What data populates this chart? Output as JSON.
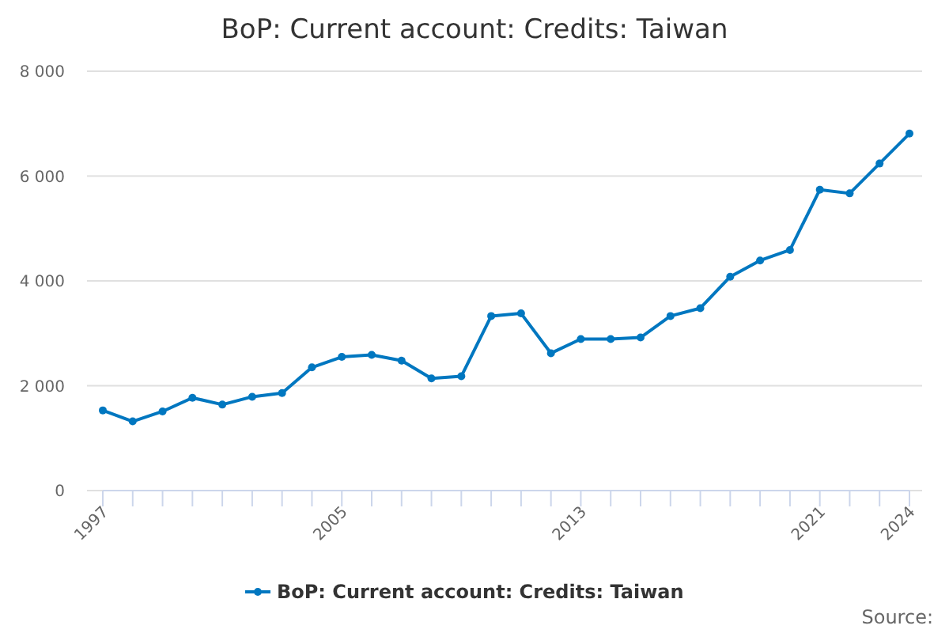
{
  "chart_data": {
    "type": "line",
    "title": "BoP: Current account: Credits: Taiwan",
    "x": [
      1997,
      1998,
      1999,
      2000,
      2001,
      2002,
      2003,
      2004,
      2005,
      2006,
      2007,
      2008,
      2009,
      2010,
      2011,
      2012,
      2013,
      2014,
      2015,
      2016,
      2017,
      2018,
      2019,
      2020,
      2021,
      2022,
      2023,
      2024
    ],
    "series": [
      {
        "name": "BoP: Current account: Credits: Taiwan",
        "color": "#0077c0",
        "values": [
          1530,
          1320,
          1510,
          1770,
          1640,
          1790,
          1860,
          2350,
          2550,
          2590,
          2480,
          2140,
          2180,
          3330,
          3380,
          2620,
          2890,
          2890,
          2920,
          3330,
          3480,
          4080,
          4390,
          4590,
          5740,
          5670,
          6240,
          6810
        ]
      }
    ],
    "xlim": [
      1997,
      2024
    ],
    "xticks": [
      1997,
      {
        "value": 1998,
        "label": null
      },
      {
        "value": 1999,
        "label": null
      },
      {
        "value": 2000,
        "label": null
      },
      {
        "value": 2001,
        "label": null
      },
      {
        "value": 2002,
        "label": null
      },
      {
        "value": 2003,
        "label": null
      },
      {
        "value": 2004,
        "label": null
      },
      2005,
      {
        "value": 2006,
        "label": null
      },
      {
        "value": 2007,
        "label": null
      },
      {
        "value": 2008,
        "label": null
      },
      {
        "value": 2009,
        "label": null
      },
      {
        "value": 2010,
        "label": null
      },
      {
        "value": 2011,
        "label": null
      },
      {
        "value": 2012,
        "label": null
      },
      2013,
      {
        "value": 2014,
        "label": null
      },
      {
        "value": 2015,
        "label": null
      },
      {
        "value": 2016,
        "label": null
      },
      {
        "value": 2017,
        "label": null
      },
      {
        "value": 2018,
        "label": null
      },
      {
        "value": 2019,
        "label": null
      },
      {
        "value": 2020,
        "label": null
      },
      2021,
      {
        "value": 2022,
        "label": null
      },
      {
        "value": 2023,
        "label": null
      },
      2024
    ],
    "ylim": [
      0,
      8000
    ],
    "yticks": [
      {
        "value": 0,
        "label": "0"
      },
      {
        "value": 2000,
        "label": "2 000"
      },
      {
        "value": 4000,
        "label": "4 000"
      },
      {
        "value": 6000,
        "label": "6 000"
      },
      {
        "value": 8000,
        "label": "8 000"
      }
    ],
    "grid": "y",
    "legend": "bottom",
    "marker": "circle",
    "line_style": "solid",
    "annotations": [
      "Source:"
    ]
  }
}
